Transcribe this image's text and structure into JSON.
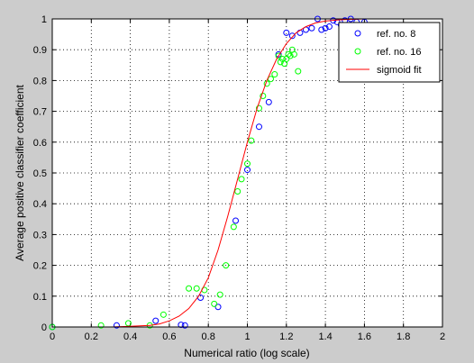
{
  "chart_data": {
    "type": "scatter",
    "xlabel": "Numerical ratio (log scale)",
    "ylabel": "Average positive classifier coefficient",
    "xlim": [
      0,
      2
    ],
    "ylim": [
      0,
      1
    ],
    "x_ticks": [
      "0",
      "0.2",
      "0.4",
      "0.6",
      "0.8",
      "1",
      "1.2",
      "1.4",
      "1.6",
      "1.8",
      "2"
    ],
    "y_ticks": [
      "0",
      "0.1",
      "0.2",
      "0.3",
      "0.4",
      "0.5",
      "0.6",
      "0.7",
      "0.8",
      "0.9",
      "1"
    ],
    "grid": true,
    "legend_position": "top-right",
    "series": [
      {
        "name": "ref. no. 8",
        "kind": "scatter",
        "marker": "circle",
        "color": "#0000ff",
        "points": [
          [
            0.0,
            0.0
          ],
          [
            0.33,
            0.005
          ],
          [
            0.53,
            0.02
          ],
          [
            0.66,
            0.007
          ],
          [
            0.68,
            0.005
          ],
          [
            0.76,
            0.095
          ],
          [
            0.85,
            0.065
          ],
          [
            0.94,
            0.345
          ],
          [
            1.0,
            0.51
          ],
          [
            1.06,
            0.65
          ],
          [
            1.11,
            0.73
          ],
          [
            1.16,
            0.885
          ],
          [
            1.2,
            0.955
          ],
          [
            1.23,
            0.945
          ],
          [
            1.27,
            0.955
          ],
          [
            1.3,
            0.965
          ],
          [
            1.33,
            0.97
          ],
          [
            1.36,
            1.0
          ],
          [
            1.38,
            0.965
          ],
          [
            1.4,
            0.97
          ],
          [
            1.42,
            0.975
          ],
          [
            1.44,
            0.995
          ],
          [
            1.46,
            0.99
          ],
          [
            1.48,
            0.98
          ],
          [
            1.5,
            0.995
          ],
          [
            1.53,
            1.0
          ],
          [
            1.56,
            0.99
          ],
          [
            1.6,
            0.99
          ]
        ]
      },
      {
        "name": "ref. no. 16",
        "kind": "scatter",
        "marker": "circle",
        "color": "#00ff00",
        "points": [
          [
            0.0,
            0.0
          ],
          [
            0.25,
            0.005
          ],
          [
            0.39,
            0.012
          ],
          [
            0.5,
            0.005
          ],
          [
            0.57,
            0.04
          ],
          [
            0.7,
            0.125
          ],
          [
            0.74,
            0.125
          ],
          [
            0.78,
            0.12
          ],
          [
            0.83,
            0.075
          ],
          [
            0.86,
            0.105
          ],
          [
            0.89,
            0.2
          ],
          [
            0.93,
            0.325
          ],
          [
            0.95,
            0.44
          ],
          [
            0.97,
            0.48
          ],
          [
            1.0,
            0.53
          ],
          [
            1.02,
            0.605
          ],
          [
            1.06,
            0.71
          ],
          [
            1.08,
            0.75
          ],
          [
            1.1,
            0.79
          ],
          [
            1.12,
            0.805
          ],
          [
            1.14,
            0.82
          ],
          [
            1.16,
            0.88
          ],
          [
            1.17,
            0.86
          ],
          [
            1.19,
            0.855
          ],
          [
            1.2,
            0.87
          ],
          [
            1.22,
            0.88
          ],
          [
            1.23,
            0.9
          ],
          [
            1.24,
            0.885
          ],
          [
            1.26,
            0.83
          ],
          [
            1.18,
            0.87
          ],
          [
            1.21,
            0.885
          ]
        ]
      },
      {
        "name": "sigmoid fit",
        "kind": "line",
        "color": "#ff0000",
        "x": [
          0,
          0.1,
          0.2,
          0.3,
          0.4,
          0.5,
          0.55,
          0.6,
          0.65,
          0.7,
          0.75,
          0.8,
          0.85,
          0.9,
          0.95,
          1.0,
          1.05,
          1.1,
          1.15,
          1.2,
          1.25,
          1.3,
          1.35,
          1.4,
          1.45,
          1.5,
          1.6,
          1.7,
          1.8,
          1.9,
          2.0
        ],
        "y": [
          0,
          0,
          0,
          0,
          0.002,
          0.005,
          0.01,
          0.02,
          0.035,
          0.06,
          0.1,
          0.16,
          0.25,
          0.36,
          0.48,
          0.6,
          0.71,
          0.8,
          0.87,
          0.92,
          0.955,
          0.975,
          0.987,
          0.993,
          0.996,
          0.998,
          1,
          1,
          1,
          1,
          1
        ]
      }
    ]
  }
}
